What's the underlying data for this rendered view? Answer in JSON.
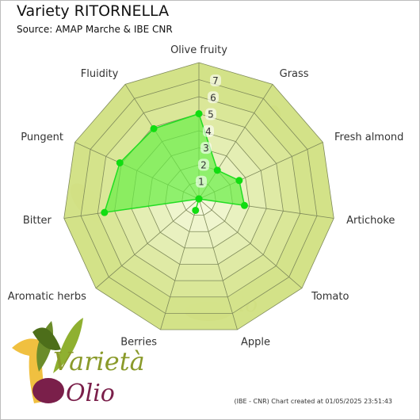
{
  "title": "Variety RITORNELLA",
  "subtitle": "Source: AMAP Marche & IBE CNR",
  "footer": "(IBE - CNR) Chart created at 01/05/2025 23:51:43",
  "logo": {
    "word1": "Varietà",
    "word2": "Olio"
  },
  "colors": {
    "ring_outer": "#cfe07e",
    "ring_inner": "#f4f8dc",
    "series_fill": "#66ee44",
    "series_line": "#22dd22",
    "point": "#11dd11"
  },
  "chart_data": {
    "type": "radar",
    "title": "Variety RITORNELLA",
    "subtitle": "Source: AMAP Marche & IBE CNR",
    "axes": [
      "Olive fruity",
      "Grass",
      "Fresh almond",
      "Artichoke",
      "Tomato",
      "Apple",
      "Berries",
      "Aromatic herbs",
      "Bitter",
      "Pungent",
      "Fluidity"
    ],
    "range": [
      0,
      8
    ],
    "ticks": [
      "1",
      "2",
      "3",
      "4",
      "5",
      "6",
      "7"
    ],
    "series": [
      {
        "values": [
          5,
          2,
          2.6,
          2.7,
          0,
          0,
          0.7,
          0,
          5.6,
          5.1,
          4.9
        ]
      }
    ]
  }
}
